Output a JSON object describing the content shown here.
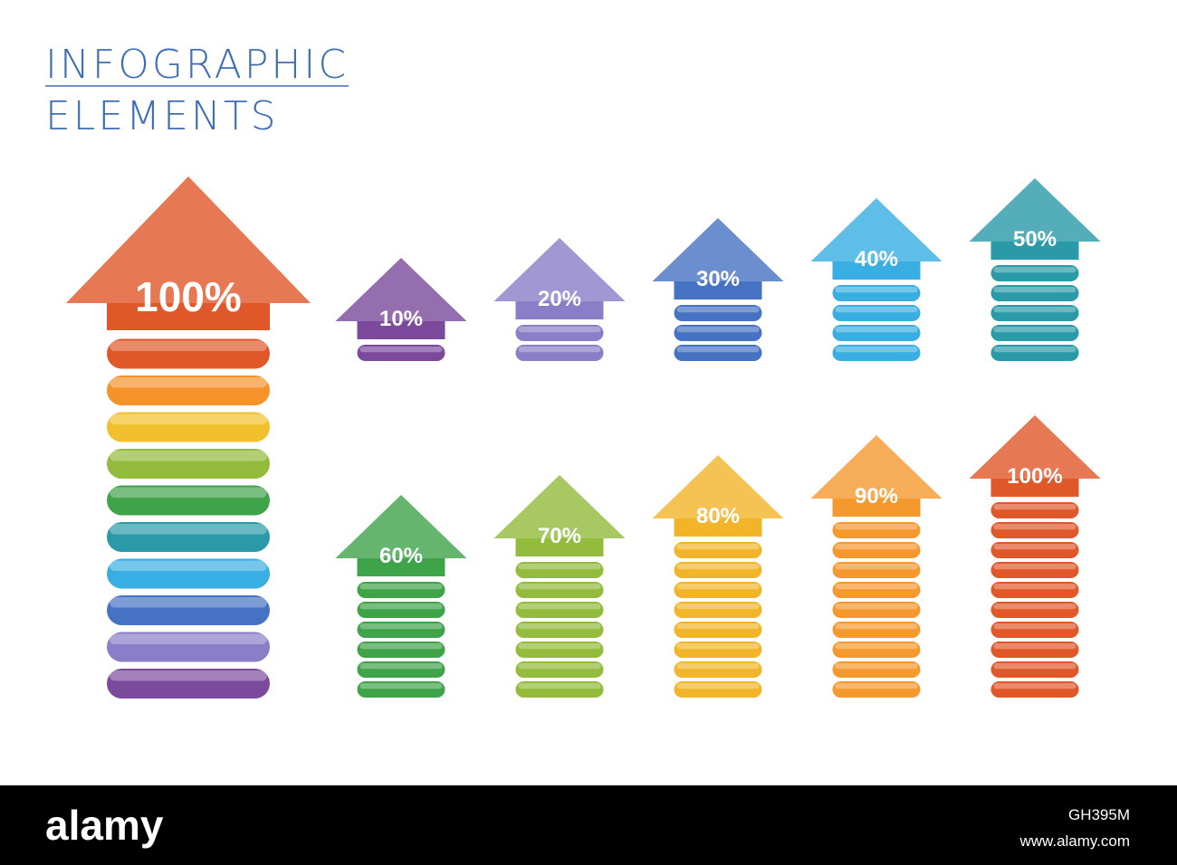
{
  "header": {
    "line1": "INFOGRAPHIC",
    "line2": "ELEMENTS"
  },
  "big_arrow": {
    "label": "100%",
    "value": 100,
    "colors": [
      "#e0582a",
      "#f5922a",
      "#f2c02c",
      "#93bb3c",
      "#3fa34a",
      "#2a9aa8",
      "#38aee2",
      "#4672c4",
      "#8a7ec8",
      "#7b4a9c"
    ]
  },
  "arrows": [
    {
      "label": "10%",
      "value": 10,
      "color": "#7b4a9c"
    },
    {
      "label": "20%",
      "value": 20,
      "color": "#8a7ec8"
    },
    {
      "label": "30%",
      "value": 30,
      "color": "#4672c4"
    },
    {
      "label": "40%",
      "value": 40,
      "color": "#38aee2"
    },
    {
      "label": "50%",
      "value": 50,
      "color": "#2a9aa8"
    },
    {
      "label": "60%",
      "value": 60,
      "color": "#3fa34a"
    },
    {
      "label": "70%",
      "value": 70,
      "color": "#93bb3c"
    },
    {
      "label": "80%",
      "value": 80,
      "color": "#f2b52a"
    },
    {
      "label": "90%",
      "value": 90,
      "color": "#f5992e"
    },
    {
      "label": "100%",
      "value": 100,
      "color": "#e0582a"
    }
  ],
  "footer": {
    "brand": "alamy",
    "image_id": "GH395M",
    "url": "www.alamy.com"
  }
}
